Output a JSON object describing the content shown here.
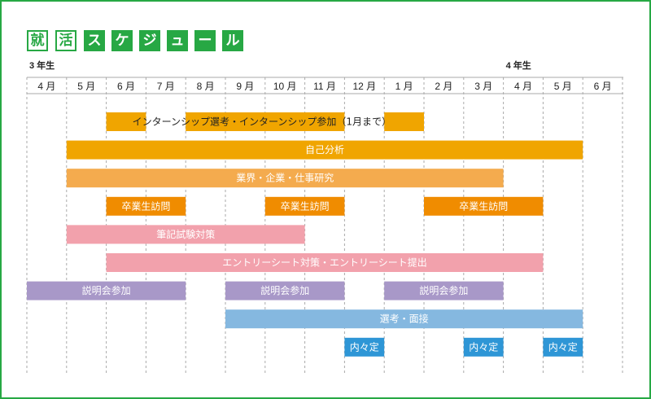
{
  "title": {
    "chars_outline": [
      "就",
      "活"
    ],
    "chars_filled": [
      "ス",
      "ケ",
      "ジ",
      "ュ",
      "ー",
      "ル"
    ]
  },
  "colors": {
    "frame": "#27a844",
    "grid": "#aaaaaa",
    "internship": "#f0a500",
    "self_analysis": "#f0a500",
    "industry_research": "#f4ab4e",
    "ob_visit": "#f08c00",
    "written_test": "#f2a1ac",
    "entry_sheet": "#f2a1ac",
    "info_session": "#a898c8",
    "interview": "#85b8e0",
    "offer": "#2e96d6"
  },
  "chart_data": {
    "type": "gantt",
    "years": [
      {
        "label": "3 年生",
        "start_index": 0
      },
      {
        "label": "4 年生",
        "start_index": 12
      }
    ],
    "months": [
      "4 月",
      "5 月",
      "6 月",
      "7 月",
      "8 月",
      "9 月",
      "10 月",
      "11 月",
      "12 月",
      "1 月",
      "2 月",
      "3 月",
      "4 月",
      "5 月",
      "6 月"
    ],
    "rows": [
      {
        "label": "インターンシップ選考・インターンシップ参加（1月まで）",
        "color_key": "internship",
        "text_color": "#222222",
        "segments": [
          [
            2,
            3
          ],
          [
            4,
            8
          ],
          [
            9,
            10
          ]
        ]
      },
      {
        "label": "自己分析",
        "color_key": "self_analysis",
        "text_color": "#ffffff",
        "segments": [
          [
            1,
            14
          ]
        ]
      },
      {
        "label": "業界・企業・仕事研究",
        "color_key": "industry_research",
        "text_color": "#ffffff",
        "segments": [
          [
            1,
            12
          ]
        ]
      },
      {
        "label": "卒業生訪問",
        "color_key": "ob_visit",
        "text_color": "#ffffff",
        "segments": [
          [
            2,
            4
          ],
          [
            6,
            8
          ],
          [
            10,
            13
          ]
        ]
      },
      {
        "label": "筆記試験対策",
        "color_key": "written_test",
        "text_color": "#ffffff",
        "segments": [
          [
            1,
            7
          ]
        ]
      },
      {
        "label": "エントリーシート対策・エントリーシート提出",
        "color_key": "entry_sheet",
        "text_color": "#ffffff",
        "segments": [
          [
            2,
            13
          ]
        ]
      },
      {
        "label": "説明会参加",
        "color_key": "info_session",
        "text_color": "#ffffff",
        "segments": [
          [
            0,
            4
          ],
          [
            5,
            8
          ],
          [
            9,
            12
          ]
        ]
      },
      {
        "label": "選考・面接",
        "color_key": "interview",
        "text_color": "#ffffff",
        "segments": [
          [
            5,
            14
          ]
        ]
      },
      {
        "label": "内々定",
        "color_key": "offer",
        "text_color": "#ffffff",
        "segments": [
          [
            8,
            9
          ],
          [
            11,
            12
          ],
          [
            13,
            14
          ]
        ]
      }
    ]
  }
}
